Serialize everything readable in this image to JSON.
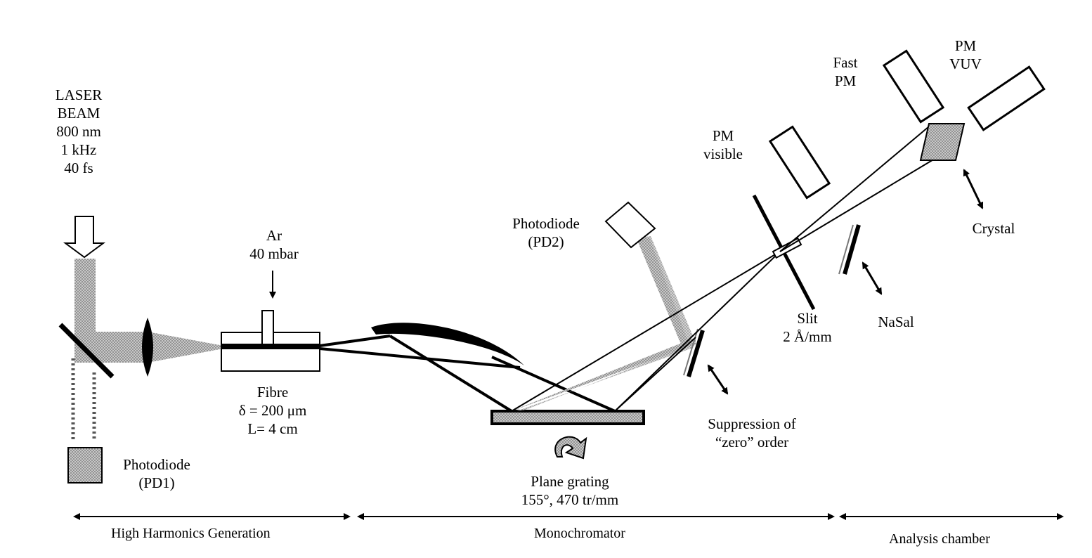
{
  "colors": {
    "ink": "#000000",
    "beam_fill": "#9a9a9a",
    "component_fill": "#bdbdbd",
    "background": "#ffffff"
  },
  "labels": {
    "laser": [
      "LASER",
      "BEAM",
      "800 nm",
      "1 kHz",
      "40 fs"
    ],
    "gas": [
      "Ar",
      "40 mbar"
    ],
    "fibre": [
      "Fibre",
      "δ = 200 μm",
      "L= 4 cm"
    ],
    "pd1": [
      "Photodiode",
      "(PD1)"
    ],
    "pd2": [
      "Photodiode",
      "(PD2)"
    ],
    "grating": [
      "Plane grating",
      "155°, 470 tr/mm"
    ],
    "suppression": [
      "Suppression of",
      "“zero” order"
    ],
    "pm_visible": [
      "PM",
      "visible"
    ],
    "fast_pm": [
      "Fast",
      "PM"
    ],
    "pm_vuv": [
      "PM",
      "VUV"
    ],
    "slit": [
      "Slit",
      "2 Å/mm"
    ],
    "nasal": "NaSal",
    "crystal": "Crystal"
  },
  "sections": {
    "hhg": "High Harmonics Generation",
    "mono": "Monochromator",
    "analysis": "Analysis chamber"
  },
  "icons": [
    "down-arrow-icon",
    "rotation-arrow-icon",
    "double-arrow-icon"
  ]
}
